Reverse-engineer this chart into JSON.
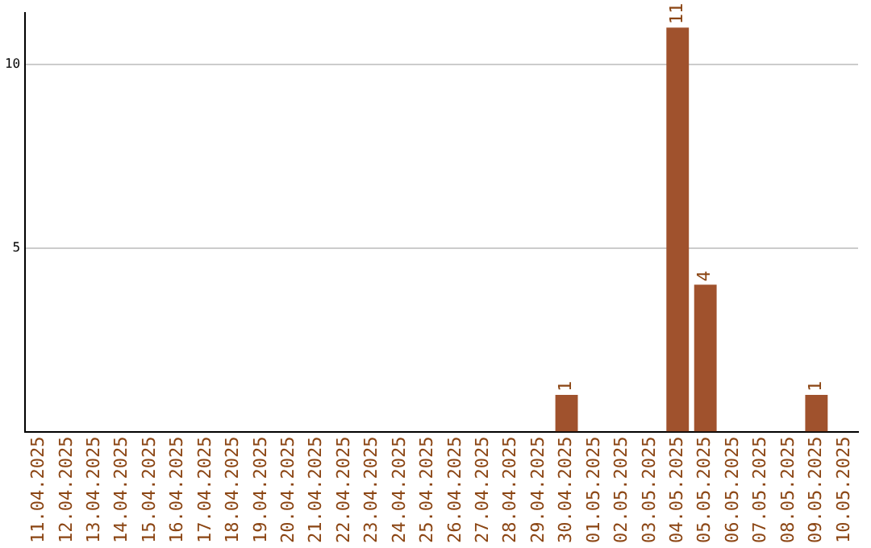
{
  "chart_data": {
    "type": "bar",
    "categories": [
      "11.04.2025",
      "12.04.2025",
      "13.04.2025",
      "14.04.2025",
      "15.04.2025",
      "16.04.2025",
      "17.04.2025",
      "18.04.2025",
      "19.04.2025",
      "20.04.2025",
      "21.04.2025",
      "22.04.2025",
      "23.04.2025",
      "24.04.2025",
      "25.04.2025",
      "26.04.2025",
      "27.04.2025",
      "28.04.2025",
      "29.04.2025",
      "30.04.2025",
      "01.05.2025",
      "02.05.2025",
      "03.05.2025",
      "04.05.2025",
      "05.05.2025",
      "06.05.2025",
      "07.05.2025",
      "08.05.2025",
      "09.05.2025",
      "10.05.2025"
    ],
    "values": [
      0,
      0,
      0,
      0,
      0,
      0,
      0,
      0,
      0,
      0,
      0,
      0,
      0,
      0,
      0,
      0,
      0,
      0,
      0,
      1,
      0,
      0,
      0,
      11,
      4,
      0,
      0,
      0,
      1,
      0
    ],
    "value_labels": [
      null,
      null,
      null,
      null,
      null,
      null,
      null,
      null,
      null,
      null,
      null,
      null,
      null,
      null,
      null,
      null,
      null,
      null,
      null,
      "1",
      null,
      null,
      null,
      "11",
      "4",
      null,
      null,
      null,
      "1",
      null
    ],
    "color": "#a0522d",
    "ylim": [
      0,
      11.4
    ],
    "yticks": [
      5,
      10
    ],
    "grid": "y",
    "legend": false
  }
}
